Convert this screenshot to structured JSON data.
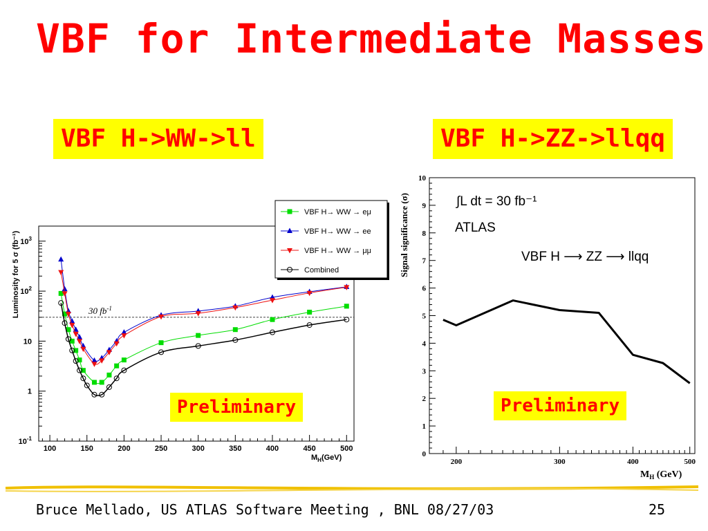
{
  "slide": {
    "title": "VBF for Intermediate Masses",
    "footer_text": "Bruce Mellado, US ATLAS Software Meeting , BNL 08/27/03",
    "page_number": "25",
    "colors": {
      "title": "#ff0000",
      "highlight": "#ffff00",
      "rule": "#f0c000"
    }
  },
  "left_panel": {
    "heading": "VBF H->WW->ll",
    "badge": "Preliminary"
  },
  "right_panel": {
    "heading": "VBF H->ZZ->llqq",
    "badge": "Preliminary"
  },
  "chart_data": [
    {
      "type": "line",
      "ylabel": "Luminosity for 5 σ (fb⁻¹)",
      "xlabel": "M_H(GeV)",
      "xlabel_main": "M",
      "xlabel_sub": "H",
      "xlabel_tail": "(GeV)",
      "xlim": [
        85,
        510
      ],
      "ylim": [
        0.1,
        2000
      ],
      "yscale": "log",
      "x_ticks": [
        "100",
        "150",
        "200",
        "250",
        "300",
        "350",
        "400",
        "450",
        "500"
      ],
      "x_tick_values": [
        100,
        150,
        200,
        250,
        300,
        350,
        400,
        450,
        500
      ],
      "y_ticks": [
        {
          "value": 0.1,
          "base": "10",
          "exp": "-1"
        },
        {
          "value": 1,
          "base": "1",
          "exp": ""
        },
        {
          "value": 10,
          "base": "10",
          "exp": ""
        },
        {
          "value": 100,
          "base": "10",
          "exp": "2"
        },
        {
          "value": 1000,
          "base": "10",
          "exp": "3"
        }
      ],
      "reference_line": {
        "value": 30,
        "label": "30 fb",
        "label_exp": "-1"
      },
      "legend_position": "top-right",
      "series": [
        {
          "name": "VBF H→ WW → eμ",
          "legend_label": "VBF H→ WW → eμ",
          "color": "#00dd00",
          "marker": "square",
          "x": [
            115,
            120,
            125,
            130,
            135,
            140,
            145,
            160,
            170,
            180,
            190,
            200,
            250,
            300,
            350,
            400,
            450,
            500
          ],
          "y": [
            90,
            35,
            17,
            10,
            6.5,
            4.2,
            2.6,
            1.5,
            1.5,
            2.1,
            3.2,
            4.2,
            9.3,
            13,
            17,
            27,
            38,
            50
          ]
        },
        {
          "name": "VBF H→ WW → ee",
          "legend_label": "VBF H→ WW → ee",
          "color": "#0000cc",
          "marker": "triangle-up",
          "x": [
            115,
            120,
            125,
            130,
            135,
            140,
            145,
            160,
            170,
            180,
            190,
            200,
            250,
            300,
            350,
            400,
            450,
            500
          ],
          "y": [
            430,
            110,
            40,
            25,
            17,
            12,
            8,
            4.1,
            4.6,
            6.7,
            10,
            15,
            33,
            40,
            50,
            75,
            97,
            122
          ]
        },
        {
          "name": "VBF H→ WW → μμ",
          "legend_label": "VBF H→ WW → μμ",
          "color": "#ee1111",
          "marker": "triangle-down",
          "x": [
            115,
            120,
            125,
            130,
            135,
            140,
            145,
            160,
            170,
            180,
            190,
            200,
            250,
            300,
            350,
            400,
            450,
            500
          ],
          "y": [
            240,
            90,
            35,
            21,
            14,
            10,
            7,
            3.5,
            4.1,
            6,
            9,
            13,
            31,
            36,
            47,
            66,
            92,
            120
          ]
        },
        {
          "name": "Combined",
          "legend_label": "Combined",
          "color": "#000000",
          "marker": "circle-open",
          "x": [
            115,
            120,
            125,
            130,
            135,
            140,
            145,
            150,
            160,
            170,
            180,
            190,
            200,
            250,
            300,
            350,
            400,
            450,
            500
          ],
          "y": [
            58,
            23,
            11,
            6.5,
            4,
            2.6,
            1.8,
            1.3,
            0.85,
            0.85,
            1.2,
            1.8,
            2.6,
            6,
            8,
            10.5,
            15,
            21,
            27
          ]
        }
      ]
    },
    {
      "type": "line",
      "ylabel": "Signal significance (σ)",
      "xlabel": "M_H (GeV)",
      "xlabel_main": "M",
      "xlabel_sub": "H",
      "xlabel_tail": " (GeV)",
      "xscale": "log",
      "xlim": [
        180,
        510
      ],
      "ylim": [
        0,
        10
      ],
      "x_ticks": [
        "200",
        "300",
        "400",
        "500"
      ],
      "x_tick_values": [
        200,
        300,
        400,
        500
      ],
      "y_ticks": [
        "0",
        "1",
        "2",
        "3",
        "4",
        "5",
        "6",
        "7",
        "8",
        "9",
        "10"
      ],
      "annotations": [
        "∫L dt = 30 fb⁻¹",
        "ATLAS",
        "VBF H ⟶ ZZ ⟶ llqq"
      ],
      "series": [
        {
          "color": "#000000",
          "x": [
            190,
            200,
            250,
            300,
            350,
            400,
            450,
            500
          ],
          "y": [
            4.85,
            4.65,
            5.55,
            5.2,
            5.1,
            3.58,
            3.28,
            2.55
          ]
        }
      ]
    }
  ]
}
